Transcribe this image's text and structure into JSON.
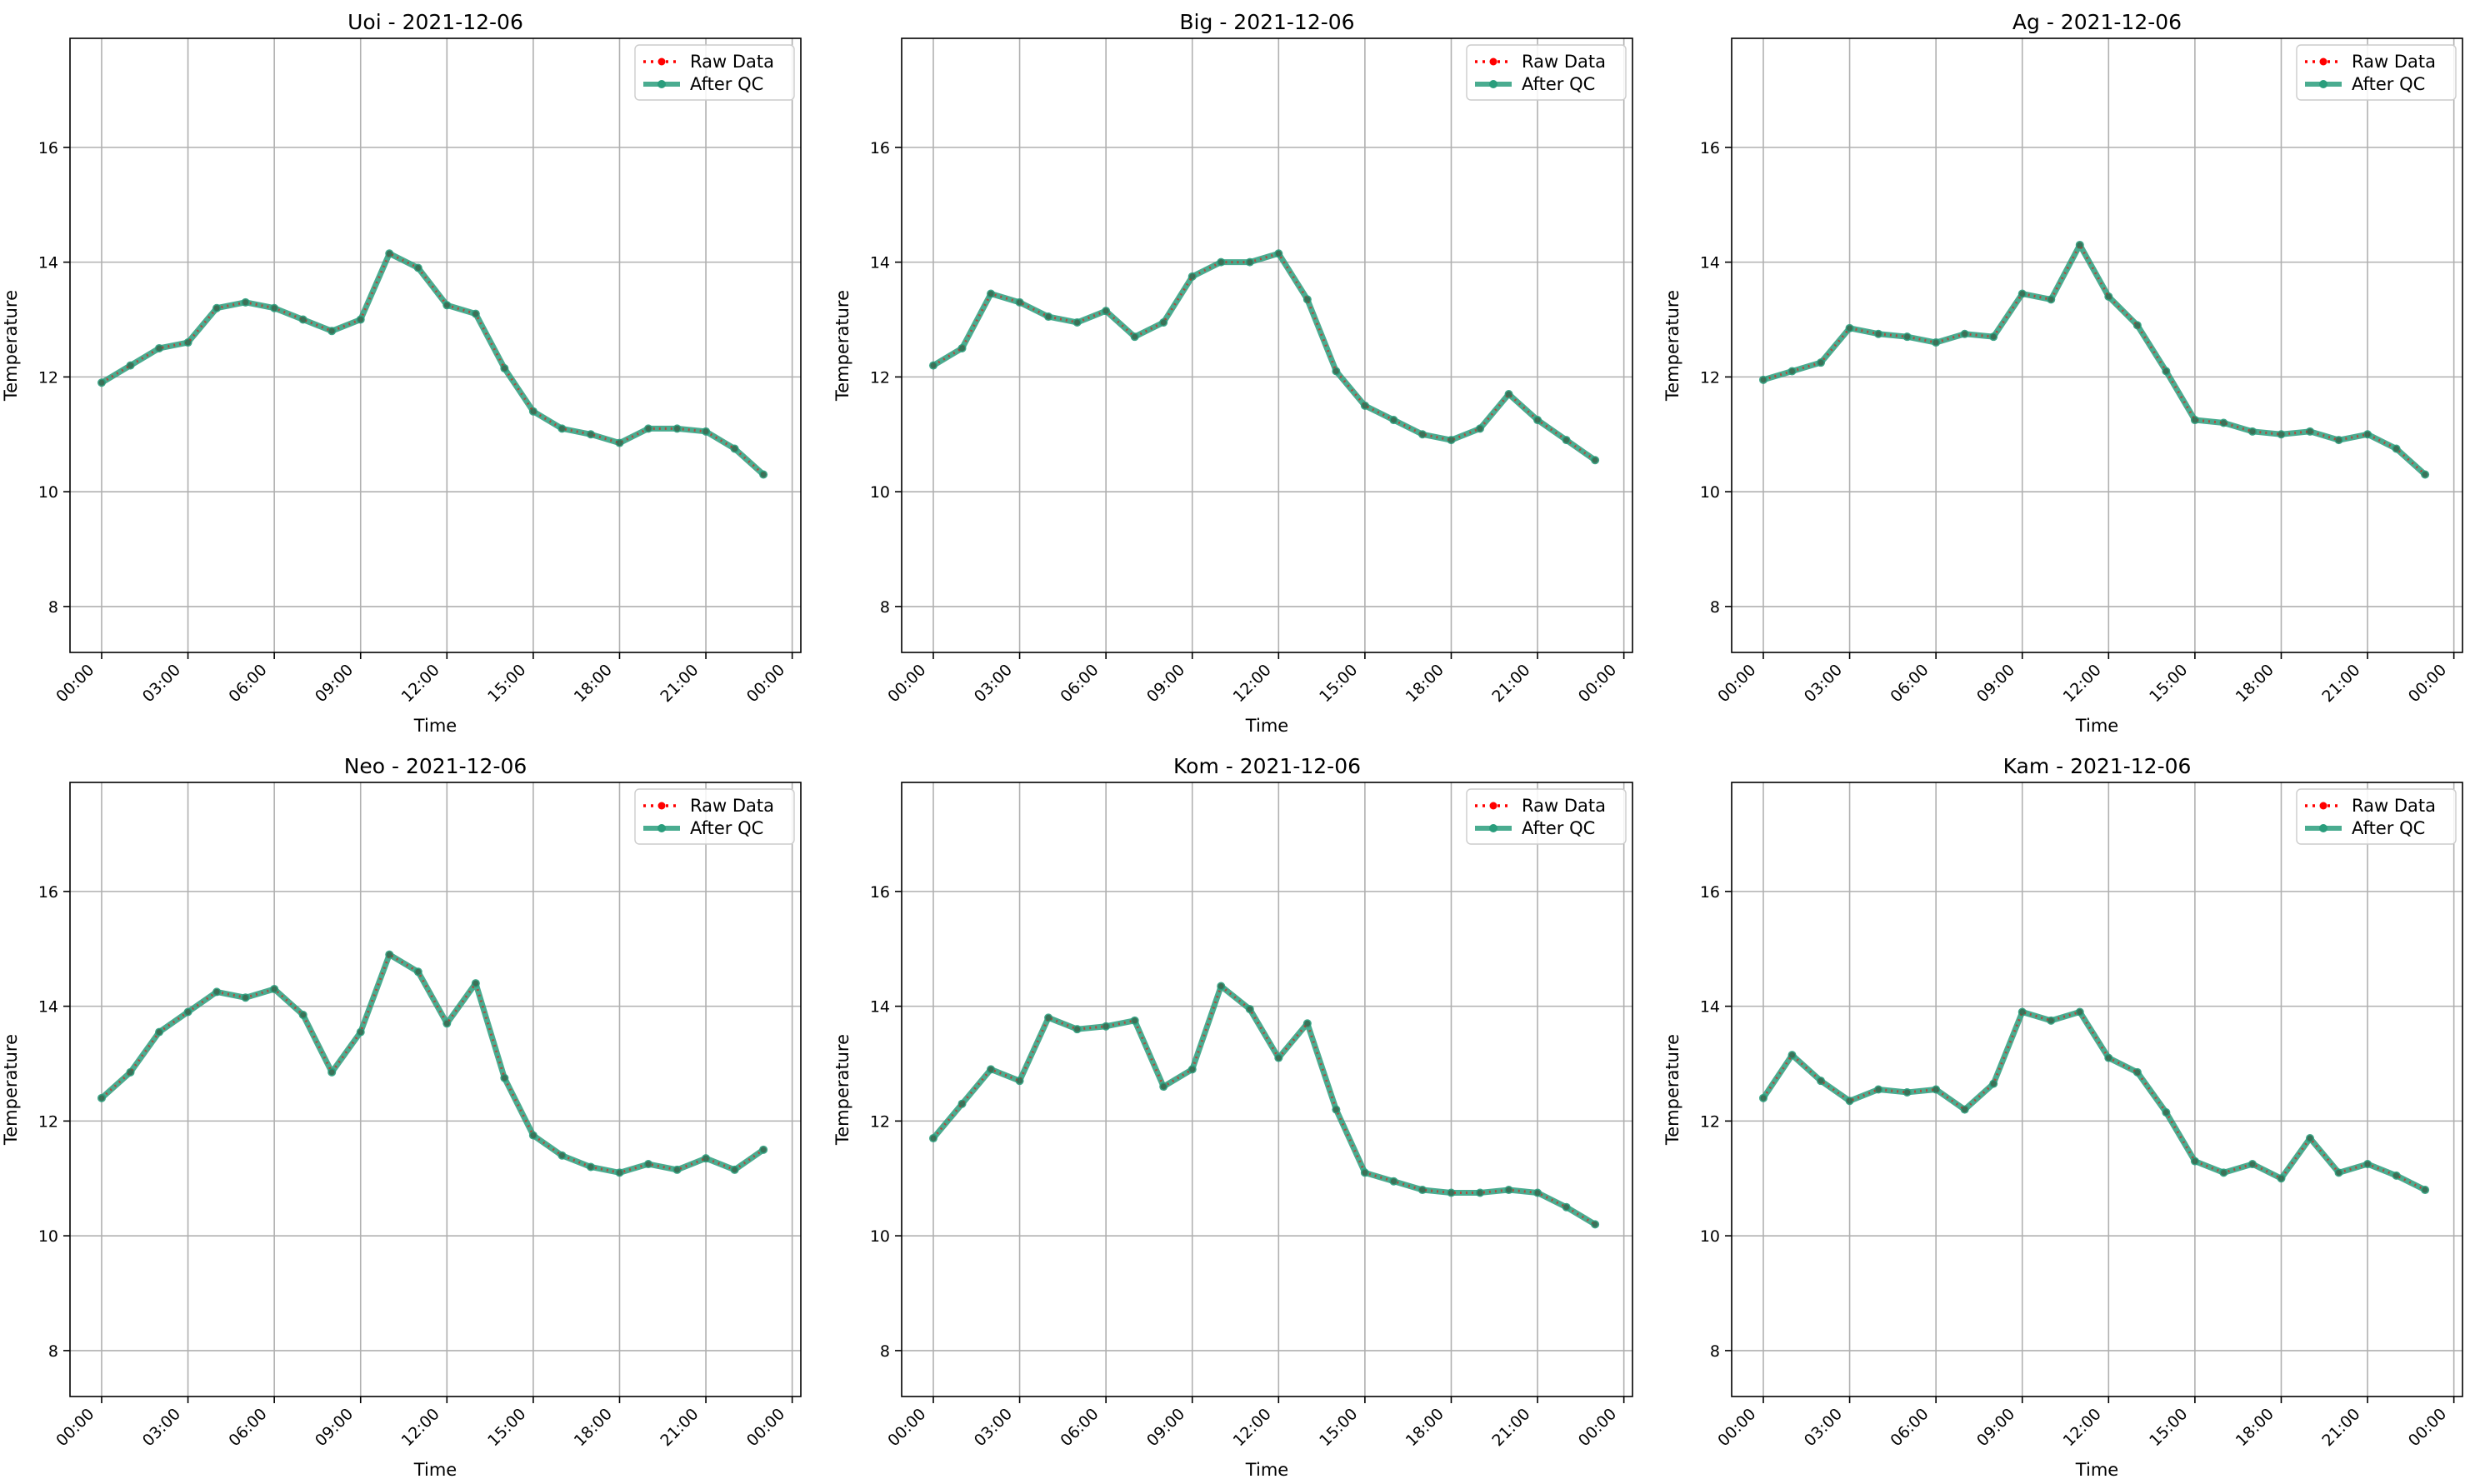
{
  "chart_data": [
    {
      "type": "line",
      "title": "Uoi - 2021-12-06",
      "xlabel": "Time",
      "ylabel": "Temperature",
      "x": [
        "00:00",
        "01:00",
        "02:00",
        "03:00",
        "04:00",
        "05:00",
        "06:00",
        "07:00",
        "08:00",
        "09:00",
        "10:00",
        "11:00",
        "12:00",
        "13:00",
        "14:00",
        "15:00",
        "16:00",
        "17:00",
        "18:00",
        "19:00",
        "20:00",
        "21:00",
        "22:00",
        "23:00"
      ],
      "xticks": [
        "00:00",
        "03:00",
        "06:00",
        "09:00",
        "12:00",
        "15:00",
        "18:00",
        "21:00",
        "00:00"
      ],
      "yticks": [
        8,
        10,
        12,
        14,
        16
      ],
      "ylim": [
        7.2,
        17.9
      ],
      "grid": true,
      "legend": "top-right",
      "series": [
        {
          "name": "Raw Data",
          "color": "#ff0000",
          "style": "dotted",
          "values": [
            11.9,
            12.2,
            12.5,
            12.6,
            13.2,
            13.3,
            13.2,
            13.0,
            12.8,
            13.0,
            14.15,
            13.9,
            13.25,
            13.1,
            12.15,
            11.4,
            11.1,
            11.0,
            10.85,
            11.1,
            11.1,
            11.05,
            10.75,
            10.3
          ]
        },
        {
          "name": "After QC",
          "color": "#2a9d7c",
          "style": "solid",
          "values": [
            11.9,
            12.2,
            12.5,
            12.6,
            13.2,
            13.3,
            13.2,
            13.0,
            12.8,
            13.0,
            14.15,
            13.9,
            13.25,
            13.1,
            12.15,
            11.4,
            11.1,
            11.0,
            10.85,
            11.1,
            11.1,
            11.05,
            10.75,
            10.3
          ]
        }
      ]
    },
    {
      "type": "line",
      "title": "Big - 2021-12-06",
      "xlabel": "Time",
      "ylabel": "Temperature",
      "x": [
        "00:00",
        "01:00",
        "02:00",
        "03:00",
        "04:00",
        "05:00",
        "06:00",
        "07:00",
        "08:00",
        "09:00",
        "10:00",
        "11:00",
        "12:00",
        "13:00",
        "14:00",
        "15:00",
        "16:00",
        "17:00",
        "18:00",
        "19:00",
        "20:00",
        "21:00",
        "22:00",
        "23:00"
      ],
      "xticks": [
        "00:00",
        "03:00",
        "06:00",
        "09:00",
        "12:00",
        "15:00",
        "18:00",
        "21:00",
        "00:00"
      ],
      "yticks": [
        8,
        10,
        12,
        14,
        16
      ],
      "ylim": [
        7.2,
        17.9
      ],
      "grid": true,
      "legend": "top-right",
      "series": [
        {
          "name": "Raw Data",
          "color": "#ff0000",
          "style": "dotted",
          "values": [
            12.2,
            12.5,
            13.45,
            13.3,
            13.05,
            12.95,
            13.15,
            12.7,
            12.95,
            13.75,
            14.0,
            14.0,
            14.15,
            13.35,
            12.1,
            11.5,
            11.25,
            11.0,
            10.9,
            11.1,
            11.7,
            11.25,
            10.9,
            10.55
          ]
        },
        {
          "name": "After QC",
          "color": "#2a9d7c",
          "style": "solid",
          "values": [
            12.2,
            12.5,
            13.45,
            13.3,
            13.05,
            12.95,
            13.15,
            12.7,
            12.95,
            13.75,
            14.0,
            14.0,
            14.15,
            13.35,
            12.1,
            11.5,
            11.25,
            11.0,
            10.9,
            11.1,
            11.7,
            11.25,
            10.9,
            10.55
          ]
        }
      ]
    },
    {
      "type": "line",
      "title": "Ag - 2021-12-06",
      "xlabel": "Time",
      "ylabel": "Temperature",
      "x": [
        "00:00",
        "01:00",
        "02:00",
        "03:00",
        "04:00",
        "05:00",
        "06:00",
        "07:00",
        "08:00",
        "09:00",
        "10:00",
        "11:00",
        "12:00",
        "13:00",
        "14:00",
        "15:00",
        "16:00",
        "17:00",
        "18:00",
        "19:00",
        "20:00",
        "21:00",
        "22:00",
        "23:00"
      ],
      "xticks": [
        "00:00",
        "03:00",
        "06:00",
        "09:00",
        "12:00",
        "15:00",
        "18:00",
        "21:00",
        "00:00"
      ],
      "yticks": [
        8,
        10,
        12,
        14,
        16
      ],
      "ylim": [
        7.2,
        17.9
      ],
      "grid": true,
      "legend": "top-right",
      "series": [
        {
          "name": "Raw Data",
          "color": "#ff0000",
          "style": "dotted",
          "values": [
            11.95,
            12.1,
            12.25,
            12.85,
            12.75,
            12.7,
            12.6,
            12.75,
            12.7,
            13.45,
            13.35,
            14.3,
            13.4,
            12.9,
            12.1,
            11.25,
            11.2,
            11.05,
            11.0,
            11.05,
            10.9,
            11.0,
            10.75,
            10.3
          ]
        },
        {
          "name": "After QC",
          "color": "#2a9d7c",
          "style": "solid",
          "values": [
            11.95,
            12.1,
            12.25,
            12.85,
            12.75,
            12.7,
            12.6,
            12.75,
            12.7,
            13.45,
            13.35,
            14.3,
            13.4,
            12.9,
            12.1,
            11.25,
            11.2,
            11.05,
            11.0,
            11.05,
            10.9,
            11.0,
            10.75,
            10.3
          ]
        }
      ]
    },
    {
      "type": "line",
      "title": "Neo - 2021-12-06",
      "xlabel": "Time",
      "ylabel": "Temperature",
      "x": [
        "00:00",
        "01:00",
        "02:00",
        "03:00",
        "04:00",
        "05:00",
        "06:00",
        "07:00",
        "08:00",
        "09:00",
        "10:00",
        "11:00",
        "12:00",
        "13:00",
        "14:00",
        "15:00",
        "16:00",
        "17:00",
        "18:00",
        "19:00",
        "20:00",
        "21:00",
        "22:00",
        "23:00"
      ],
      "xticks": [
        "00:00",
        "03:00",
        "06:00",
        "09:00",
        "12:00",
        "15:00",
        "18:00",
        "21:00",
        "00:00"
      ],
      "yticks": [
        8,
        10,
        12,
        14,
        16
      ],
      "ylim": [
        7.2,
        17.9
      ],
      "grid": true,
      "legend": "top-right",
      "series": [
        {
          "name": "Raw Data",
          "color": "#ff0000",
          "style": "dotted",
          "values": [
            12.4,
            12.85,
            13.55,
            13.9,
            14.25,
            14.15,
            14.3,
            13.85,
            12.85,
            13.55,
            14.9,
            14.6,
            13.7,
            14.4,
            12.75,
            11.75,
            11.4,
            11.2,
            11.1,
            11.25,
            11.15,
            11.35,
            11.15,
            11.5
          ]
        },
        {
          "name": "After QC",
          "color": "#2a9d7c",
          "style": "solid",
          "values": [
            12.4,
            12.85,
            13.55,
            13.9,
            14.25,
            14.15,
            14.3,
            13.85,
            12.85,
            13.55,
            14.9,
            14.6,
            13.7,
            14.4,
            12.75,
            11.75,
            11.4,
            11.2,
            11.1,
            11.25,
            11.15,
            11.35,
            11.15,
            11.5
          ]
        }
      ]
    },
    {
      "type": "line",
      "title": "Kom - 2021-12-06",
      "xlabel": "Time",
      "ylabel": "Temperature",
      "x": [
        "00:00",
        "01:00",
        "02:00",
        "03:00",
        "04:00",
        "05:00",
        "06:00",
        "07:00",
        "08:00",
        "09:00",
        "10:00",
        "11:00",
        "12:00",
        "13:00",
        "14:00",
        "15:00",
        "16:00",
        "17:00",
        "18:00",
        "19:00",
        "20:00",
        "21:00",
        "22:00",
        "23:00"
      ],
      "xticks": [
        "00:00",
        "03:00",
        "06:00",
        "09:00",
        "12:00",
        "15:00",
        "18:00",
        "21:00",
        "00:00"
      ],
      "yticks": [
        8,
        10,
        12,
        14,
        16
      ],
      "ylim": [
        7.2,
        17.9
      ],
      "grid": true,
      "legend": "top-right",
      "series": [
        {
          "name": "Raw Data",
          "color": "#ff0000",
          "style": "dotted",
          "values": [
            11.7,
            12.3,
            12.9,
            12.7,
            13.8,
            13.6,
            13.65,
            13.75,
            12.6,
            12.9,
            14.35,
            13.95,
            13.1,
            13.7,
            12.2,
            11.1,
            10.95,
            10.8,
            10.75,
            10.75,
            10.8,
            10.75,
            10.5,
            10.2
          ]
        },
        {
          "name": "After QC",
          "color": "#2a9d7c",
          "style": "solid",
          "values": [
            11.7,
            12.3,
            12.9,
            12.7,
            13.8,
            13.6,
            13.65,
            13.75,
            12.6,
            12.9,
            14.35,
            13.95,
            13.1,
            13.7,
            12.2,
            11.1,
            10.95,
            10.8,
            10.75,
            10.75,
            10.8,
            10.75,
            10.5,
            10.2
          ]
        }
      ]
    },
    {
      "type": "line",
      "title": "Kam - 2021-12-06",
      "xlabel": "Time",
      "ylabel": "Temperature",
      "x": [
        "00:00",
        "01:00",
        "02:00",
        "03:00",
        "04:00",
        "05:00",
        "06:00",
        "07:00",
        "08:00",
        "09:00",
        "10:00",
        "11:00",
        "12:00",
        "13:00",
        "14:00",
        "15:00",
        "16:00",
        "17:00",
        "18:00",
        "19:00",
        "20:00",
        "21:00",
        "22:00",
        "23:00"
      ],
      "xticks": [
        "00:00",
        "03:00",
        "06:00",
        "09:00",
        "12:00",
        "15:00",
        "18:00",
        "21:00",
        "00:00"
      ],
      "yticks": [
        8,
        10,
        12,
        14,
        16
      ],
      "ylim": [
        7.2,
        17.9
      ],
      "grid": true,
      "legend": "top-right",
      "series": [
        {
          "name": "Raw Data",
          "color": "#ff0000",
          "style": "dotted",
          "values": [
            12.4,
            13.15,
            12.7,
            12.35,
            12.55,
            12.5,
            12.55,
            12.2,
            12.65,
            13.9,
            13.75,
            13.9,
            13.1,
            12.85,
            12.15,
            11.3,
            11.1,
            11.25,
            11.0,
            11.7,
            11.1,
            11.25,
            11.05,
            10.8
          ]
        },
        {
          "name": "After QC",
          "color": "#2a9d7c",
          "style": "solid",
          "values": [
            12.4,
            13.15,
            12.7,
            12.35,
            12.55,
            12.5,
            12.55,
            12.2,
            12.65,
            13.9,
            13.75,
            13.9,
            13.1,
            12.85,
            12.15,
            11.3,
            11.1,
            11.25,
            11.0,
            11.7,
            11.1,
            11.25,
            11.05,
            10.8
          ]
        }
      ]
    }
  ]
}
